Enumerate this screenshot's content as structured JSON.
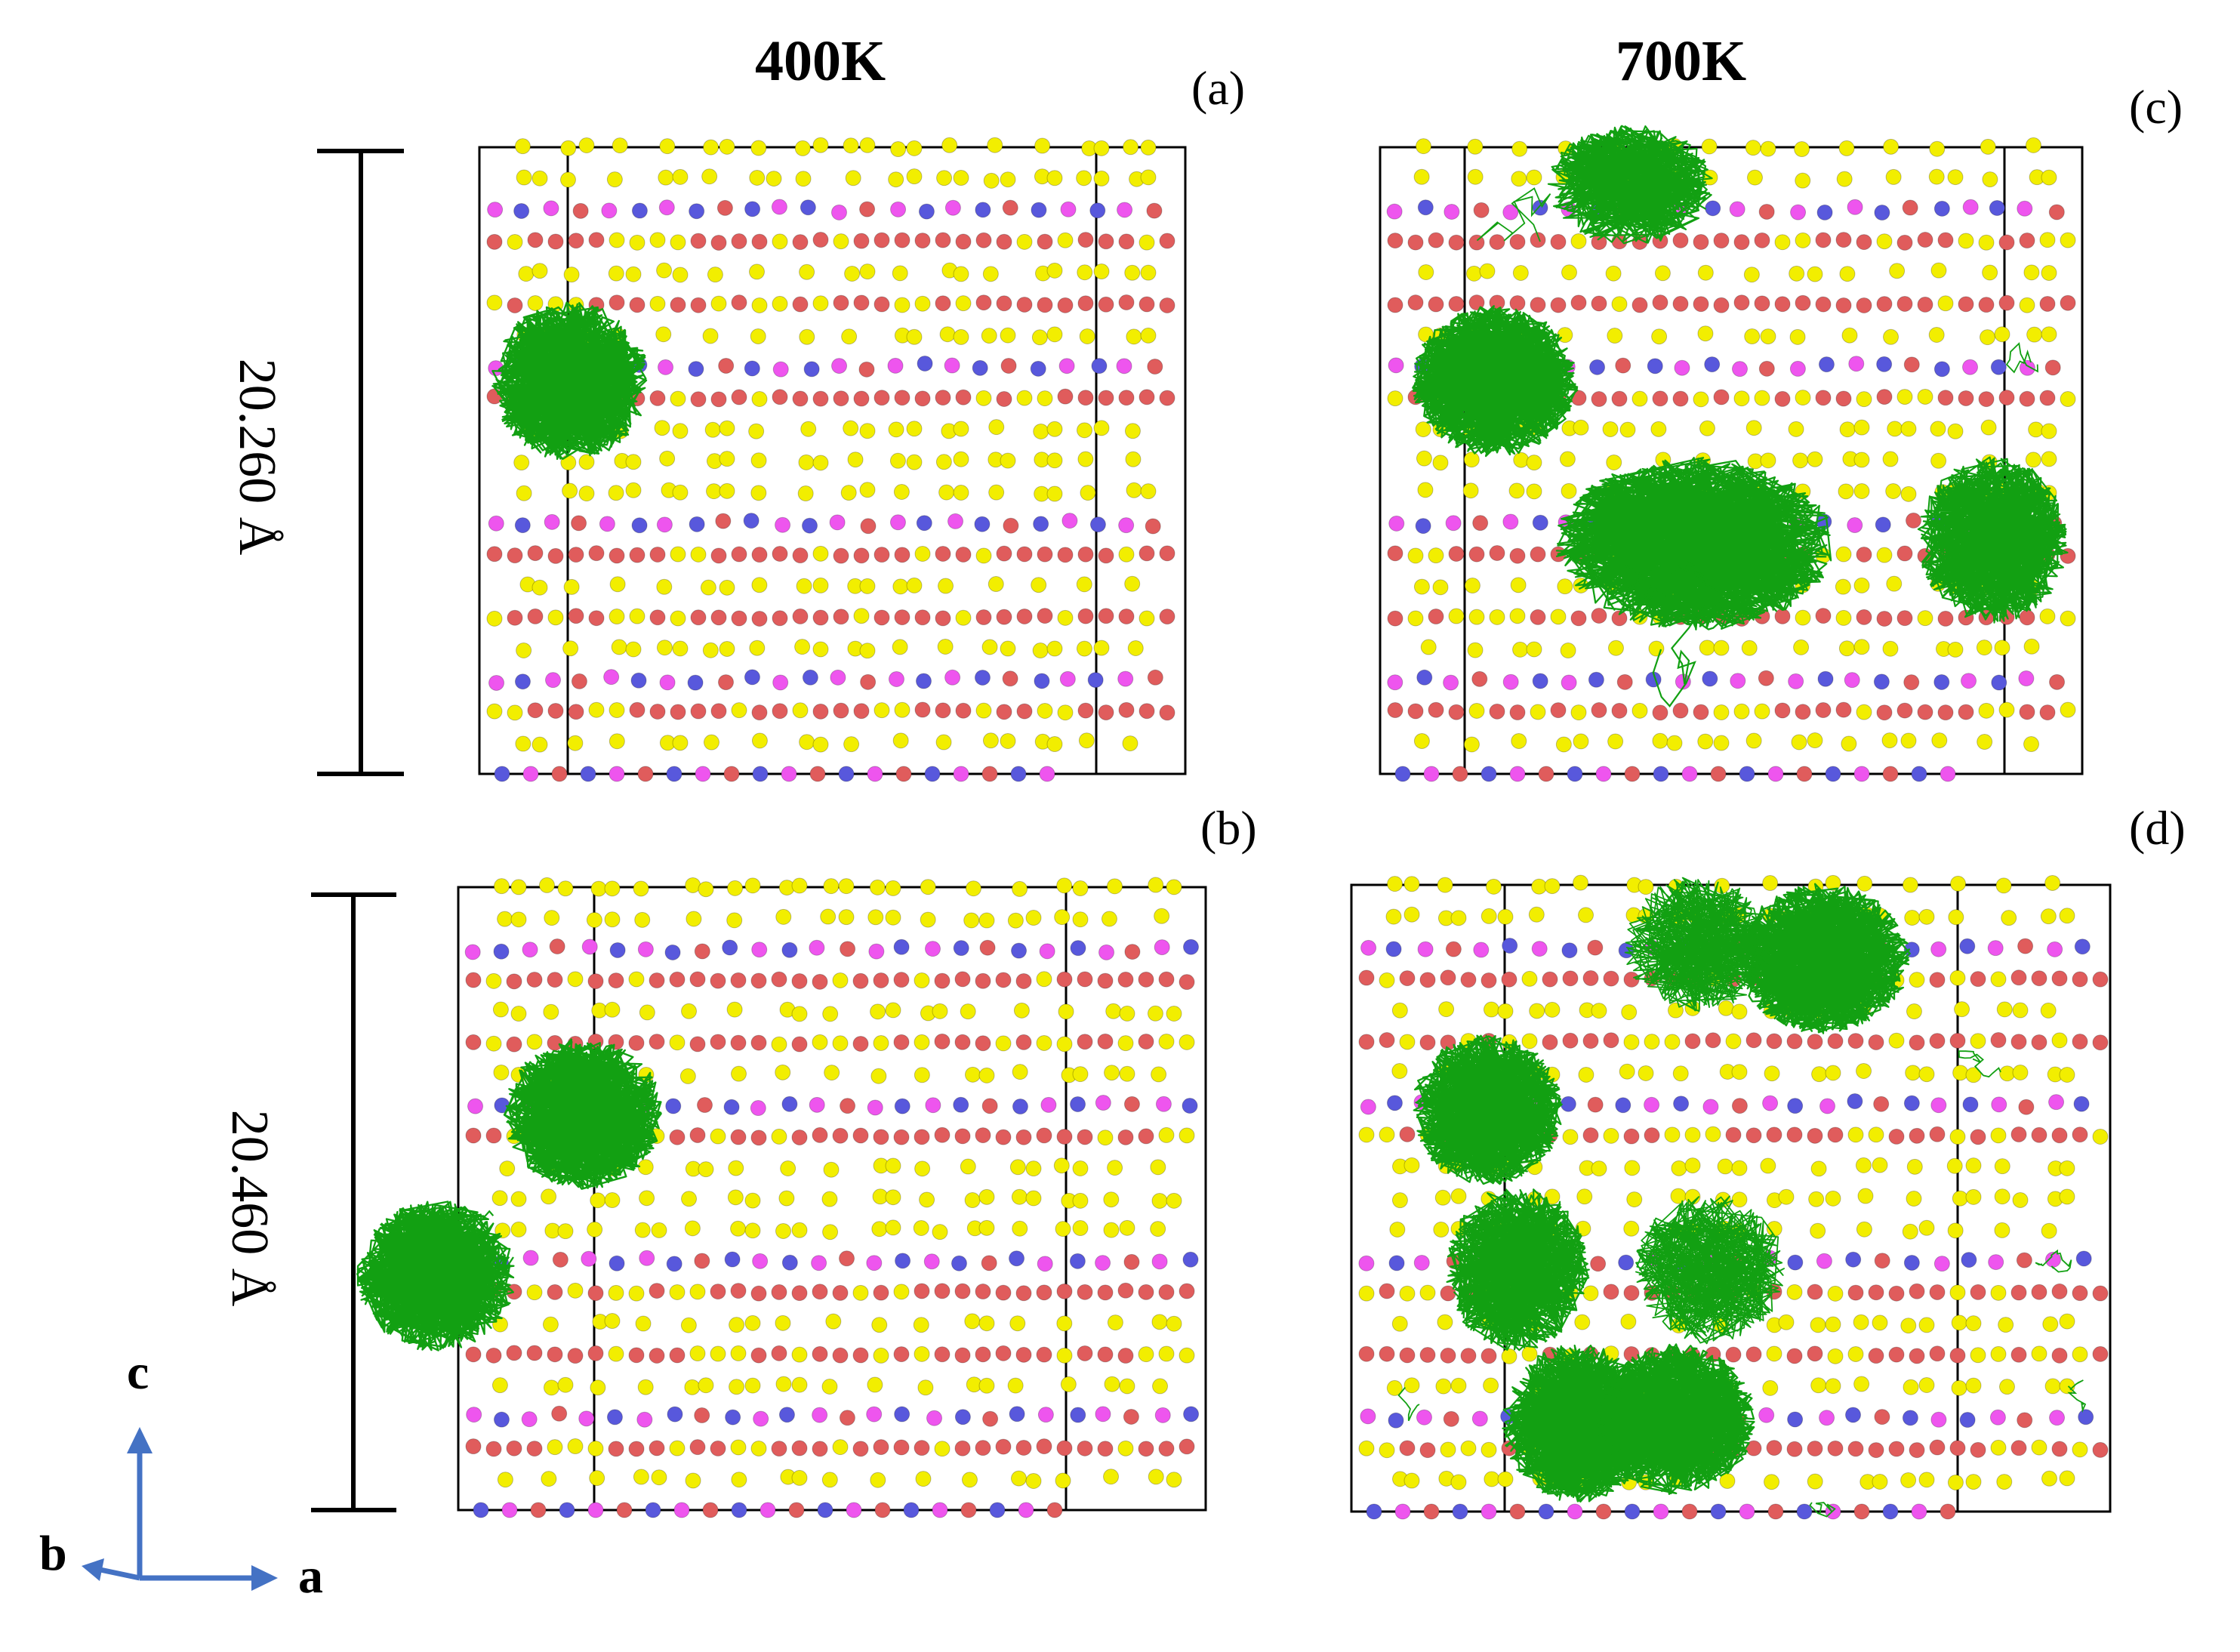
{
  "columns": {
    "left_title": "400K",
    "right_title": "700K"
  },
  "panels": [
    {
      "id": "a",
      "letter": "(a)",
      "temperature": "400K",
      "cell_height_label": "20.260 Å"
    },
    {
      "id": "b",
      "letter": "(b)",
      "temperature": "400K",
      "cell_height_label": "20.460 Å"
    },
    {
      "id": "c",
      "letter": "(c)",
      "temperature": "700K"
    },
    {
      "id": "d",
      "letter": "(d)",
      "temperature": "700K"
    }
  ],
  "axes": {
    "c": "c",
    "b": "b",
    "a": "a",
    "arrow_color": "#4472c4"
  },
  "atom_colors": {
    "red": "#e05c5c",
    "yellow": "#f2ee00",
    "blue": "#5858dc",
    "magenta": "#ee55ee"
  },
  "trajectory_color": "#12a012"
}
